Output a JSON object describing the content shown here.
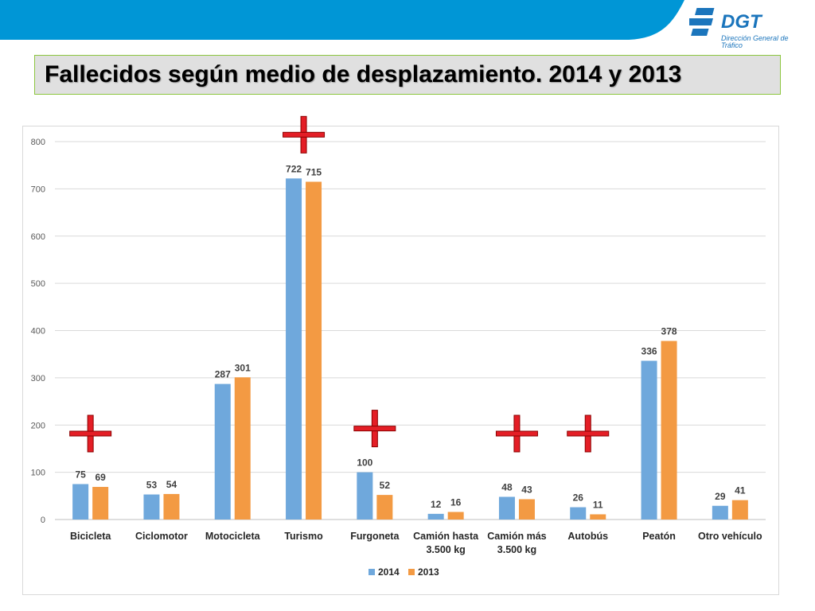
{
  "header": {
    "title": "Fallecidos según medio de desplazamiento. 2014 y 2013",
    "logo_text": "DGT",
    "logo_subtitle": "Dirección General de Tráfico",
    "band_color": "#0096d6"
  },
  "chart_data": {
    "type": "bar",
    "categories": [
      [
        "Bicicleta"
      ],
      [
        "Ciclomotor"
      ],
      [
        "Motocicleta"
      ],
      [
        "Turismo"
      ],
      [
        "Furgoneta"
      ],
      [
        "Camión hasta",
        "3.500 kg"
      ],
      [
        "Camión más",
        "3.500 kg"
      ],
      [
        "Autobús"
      ],
      [
        "Peatón"
      ],
      [
        "Otro vehículo"
      ]
    ],
    "series": [
      {
        "name": "2014",
        "color": "#6fa8dc",
        "values": [
          75,
          53,
          287,
          722,
          100,
          12,
          48,
          26,
          336,
          29
        ]
      },
      {
        "name": "2013",
        "color": "#f39a43",
        "values": [
          69,
          54,
          301,
          715,
          52,
          16,
          43,
          11,
          378,
          41
        ]
      }
    ],
    "ylim": [
      0,
      800
    ],
    "yticks": [
      0,
      100,
      200,
      300,
      400,
      500,
      600,
      700,
      800
    ],
    "grid": true,
    "legend_position": "bottom",
    "data_labels": true,
    "cross_markers": {
      "color": "#e41e26",
      "categories": [
        "Bicicleta",
        "Turismo",
        "Furgoneta",
        "Camión más 3.500 kg",
        "Autobús"
      ]
    }
  }
}
